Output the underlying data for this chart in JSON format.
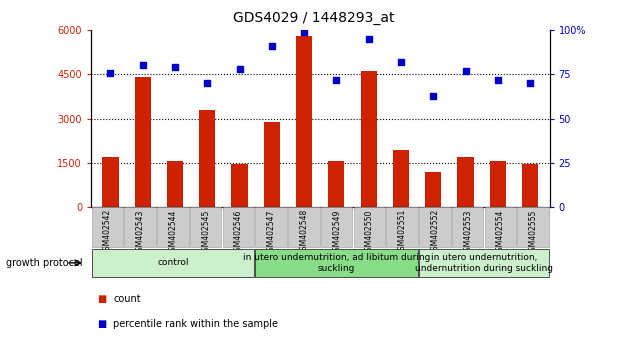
{
  "title": "GDS4029 / 1448293_at",
  "categories": [
    "GSM402542",
    "GSM402543",
    "GSM402544",
    "GSM402545",
    "GSM402546",
    "GSM402547",
    "GSM402548",
    "GSM402549",
    "GSM402550",
    "GSM402551",
    "GSM402552",
    "GSM402553",
    "GSM402554",
    "GSM402555"
  ],
  "bar_values": [
    1700,
    4400,
    1550,
    3300,
    1450,
    2900,
    5800,
    1550,
    4600,
    1950,
    1200,
    1700,
    1550,
    1450
  ],
  "dot_values_pct": [
    76,
    80,
    79,
    70,
    78,
    91,
    99,
    72,
    95,
    82,
    63,
    77,
    72,
    70
  ],
  "bar_color": "#cc2200",
  "dot_color": "#0000cc",
  "left_ylim": [
    0,
    6000
  ],
  "left_yticks": [
    0,
    1500,
    3000,
    4500,
    6000
  ],
  "left_yticklabels": [
    "0",
    "1500",
    "3000",
    "4500",
    "6000"
  ],
  "right_ylim": [
    0,
    100
  ],
  "right_yticks": [
    0,
    25,
    50,
    75,
    100
  ],
  "right_yticklabels": [
    "0",
    "25",
    "50",
    "75",
    "100%"
  ],
  "hlines": [
    1500,
    3000,
    4500
  ],
  "groups": [
    {
      "label": "control",
      "start": 0,
      "end": 4,
      "color": "#ccf0cc"
    },
    {
      "label": "in utero undernutrition, ad libitum during\nsuckling",
      "start": 5,
      "end": 9,
      "color": "#88dd88"
    },
    {
      "label": "in utero undernutrition,\nundernutrition during suckling",
      "start": 10,
      "end": 13,
      "color": "#ccf0cc"
    }
  ],
  "growth_protocol_label": "growth protocol",
  "legend_count_label": "count",
  "legend_pct_label": "percentile rank within the sample",
  "bar_color_red": "#cc2200",
  "dot_color_blue": "#0000cc",
  "bar_width": 0.5,
  "cell_bg": "#cccccc",
  "cell_edge": "#999999",
  "tick_label_fontsize": 7,
  "title_fontsize": 10,
  "group_fontsize": 6.5,
  "legend_fontsize": 7,
  "sample_label_fontsize": 5.5
}
